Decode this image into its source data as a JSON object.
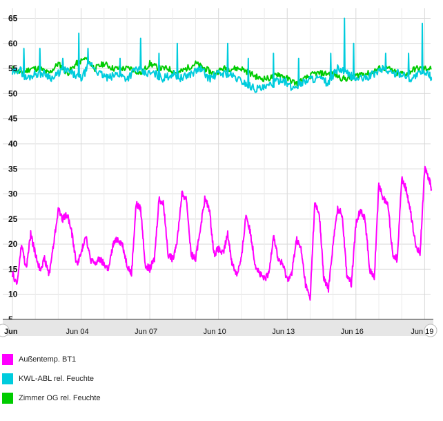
{
  "chart_data": {
    "type": "line",
    "x_range": [
      "2018-06-01",
      "2018-06-19"
    ],
    "x_ticks": [
      "Jun",
      "Jun 04",
      "Jun 07",
      "Jun 10",
      "Jun 13",
      "Jun 16",
      "Jun 19"
    ],
    "x_tick_days": [
      1,
      4,
      7,
      10,
      13,
      16,
      19
    ],
    "ylim": [
      5,
      67
    ],
    "y_ticks": [
      5,
      10,
      15,
      20,
      25,
      30,
      35,
      40,
      45,
      50,
      55,
      60,
      65
    ],
    "grid": true,
    "legend_position": "bottom-left",
    "series": [
      {
        "name": "Außentemp. BT1",
        "color": "#ff00ff",
        "points": [
          [
            1.0,
            14
          ],
          [
            1.2,
            12
          ],
          [
            1.4,
            20
          ],
          [
            1.6,
            15
          ],
          [
            1.8,
            22
          ],
          [
            2.0,
            18
          ],
          [
            2.2,
            15
          ],
          [
            2.4,
            17
          ],
          [
            2.6,
            14
          ],
          [
            2.8,
            20
          ],
          [
            3.0,
            27
          ],
          [
            3.2,
            25
          ],
          [
            3.4,
            26
          ],
          [
            3.6,
            22
          ],
          [
            3.8,
            16
          ],
          [
            4.0,
            18
          ],
          [
            4.2,
            22
          ],
          [
            4.4,
            17
          ],
          [
            4.6,
            16
          ],
          [
            4.8,
            17
          ],
          [
            5.0,
            16
          ],
          [
            5.2,
            15
          ],
          [
            5.4,
            20
          ],
          [
            5.6,
            21
          ],
          [
            5.8,
            20
          ],
          [
            6.0,
            16
          ],
          [
            6.2,
            14
          ],
          [
            6.4,
            28
          ],
          [
            6.6,
            27
          ],
          [
            6.8,
            16
          ],
          [
            7.0,
            15
          ],
          [
            7.2,
            17
          ],
          [
            7.4,
            29
          ],
          [
            7.6,
            28
          ],
          [
            7.8,
            18
          ],
          [
            8.0,
            17
          ],
          [
            8.2,
            21
          ],
          [
            8.4,
            30
          ],
          [
            8.6,
            29
          ],
          [
            8.8,
            18
          ],
          [
            9.0,
            17
          ],
          [
            9.2,
            23
          ],
          [
            9.4,
            29
          ],
          [
            9.6,
            27
          ],
          [
            9.8,
            18
          ],
          [
            10.0,
            19
          ],
          [
            10.2,
            18
          ],
          [
            10.4,
            22
          ],
          [
            10.6,
            16
          ],
          [
            10.8,
            14
          ],
          [
            11.0,
            17
          ],
          [
            11.2,
            26
          ],
          [
            11.4,
            22
          ],
          [
            11.6,
            16
          ],
          [
            11.8,
            14
          ],
          [
            12.0,
            13
          ],
          [
            12.2,
            14
          ],
          [
            12.4,
            22
          ],
          [
            12.6,
            17
          ],
          [
            12.8,
            16
          ],
          [
            13.0,
            13
          ],
          [
            13.2,
            14
          ],
          [
            13.4,
            21
          ],
          [
            13.6,
            19
          ],
          [
            13.8,
            12
          ],
          [
            14.0,
            9
          ],
          [
            14.2,
            28
          ],
          [
            14.4,
            26
          ],
          [
            14.6,
            13
          ],
          [
            14.8,
            11
          ],
          [
            15.0,
            20
          ],
          [
            15.2,
            27
          ],
          [
            15.4,
            26
          ],
          [
            15.6,
            14
          ],
          [
            15.8,
            12
          ],
          [
            16.0,
            24
          ],
          [
            16.2,
            27
          ],
          [
            16.4,
            25
          ],
          [
            16.6,
            15
          ],
          [
            16.8,
            13
          ],
          [
            17.0,
            32
          ],
          [
            17.2,
            29
          ],
          [
            17.4,
            28
          ],
          [
            17.6,
            18
          ],
          [
            17.8,
            17
          ],
          [
            18.0,
            33
          ],
          [
            18.2,
            31
          ],
          [
            18.4,
            26
          ],
          [
            18.6,
            20
          ],
          [
            18.8,
            18
          ],
          [
            19.0,
            35
          ],
          [
            19.2,
            33
          ],
          [
            19.3,
            31
          ]
        ]
      },
      {
        "name": "KWL-ABL rel. Feuchte",
        "color": "#00ccdd",
        "points": [
          [
            1.0,
            54
          ],
          [
            1.3,
            55
          ],
          [
            1.6,
            53
          ],
          [
            2.0,
            54
          ],
          [
            2.4,
            54
          ],
          [
            2.8,
            53
          ],
          [
            3.2,
            55
          ],
          [
            3.6,
            54
          ],
          [
            4.0,
            53
          ],
          [
            4.4,
            56
          ],
          [
            4.8,
            54
          ],
          [
            5.2,
            53
          ],
          [
            5.6,
            54
          ],
          [
            6.0,
            53
          ],
          [
            6.4,
            55
          ],
          [
            6.8,
            54
          ],
          [
            7.2,
            54
          ],
          [
            7.6,
            53
          ],
          [
            8.0,
            54
          ],
          [
            8.4,
            53
          ],
          [
            8.8,
            54
          ],
          [
            9.2,
            55
          ],
          [
            9.6,
            53
          ],
          [
            10.0,
            54
          ],
          [
            10.4,
            54
          ],
          [
            10.8,
            53
          ],
          [
            11.2,
            52
          ],
          [
            11.6,
            51
          ],
          [
            12.0,
            51
          ],
          [
            12.4,
            52
          ],
          [
            12.8,
            53
          ],
          [
            13.2,
            51
          ],
          [
            13.6,
            52
          ],
          [
            14.0,
            53
          ],
          [
            14.4,
            53
          ],
          [
            14.8,
            52
          ],
          [
            15.2,
            55
          ],
          [
            15.6,
            54
          ],
          [
            16.0,
            53
          ],
          [
            16.4,
            53
          ],
          [
            16.8,
            54
          ],
          [
            17.2,
            55
          ],
          [
            17.6,
            54
          ],
          [
            18.0,
            54
          ],
          [
            18.4,
            53
          ],
          [
            18.8,
            54
          ],
          [
            19.2,
            54
          ],
          [
            19.3,
            53
          ]
        ],
        "peaks": [
          [
            1.5,
            59
          ],
          [
            2.2,
            59
          ],
          [
            3.2,
            57
          ],
          [
            3.9,
            62
          ],
          [
            4.3,
            59
          ],
          [
            5.7,
            57
          ],
          [
            6.6,
            61
          ],
          [
            7.4,
            58
          ],
          [
            8.2,
            60
          ],
          [
            10.4,
            60
          ],
          [
            11.3,
            57
          ],
          [
            12.4,
            58
          ],
          [
            13.5,
            57
          ],
          [
            14.9,
            58
          ],
          [
            15.5,
            65
          ],
          [
            15.9,
            60
          ],
          [
            17.3,
            58
          ],
          [
            18.3,
            58
          ],
          [
            18.9,
            64
          ]
        ]
      },
      {
        "name": "Zimmer OG rel. Feuchte",
        "color": "#00cc00",
        "points": [
          [
            1.0,
            55
          ],
          [
            1.4,
            54
          ],
          [
            1.8,
            55
          ],
          [
            2.2,
            55
          ],
          [
            2.6,
            54
          ],
          [
            3.0,
            56
          ],
          [
            3.4,
            54
          ],
          [
            3.8,
            56
          ],
          [
            4.2,
            57
          ],
          [
            4.6,
            55
          ],
          [
            5.0,
            56
          ],
          [
            5.4,
            55
          ],
          [
            5.8,
            55
          ],
          [
            6.2,
            55
          ],
          [
            6.6,
            54
          ],
          [
            7.0,
            56
          ],
          [
            7.4,
            55
          ],
          [
            7.8,
            55
          ],
          [
            8.2,
            54
          ],
          [
            8.6,
            55
          ],
          [
            9.0,
            56
          ],
          [
            9.4,
            55
          ],
          [
            9.8,
            54
          ],
          [
            10.2,
            55
          ],
          [
            10.6,
            55
          ],
          [
            11.0,
            55
          ],
          [
            11.4,
            54
          ],
          [
            11.8,
            53
          ],
          [
            12.2,
            53
          ],
          [
            12.6,
            54
          ],
          [
            13.0,
            53
          ],
          [
            13.4,
            52
          ],
          [
            13.8,
            53
          ],
          [
            14.2,
            54
          ],
          [
            14.6,
            54
          ],
          [
            15.0,
            54
          ],
          [
            15.4,
            53
          ],
          [
            15.8,
            53
          ],
          [
            16.2,
            54
          ],
          [
            16.6,
            54
          ],
          [
            17.0,
            55
          ],
          [
            17.4,
            55
          ],
          [
            17.8,
            54
          ],
          [
            18.2,
            54
          ],
          [
            18.6,
            55
          ],
          [
            19.0,
            55
          ],
          [
            19.3,
            55
          ]
        ]
      }
    ]
  }
}
